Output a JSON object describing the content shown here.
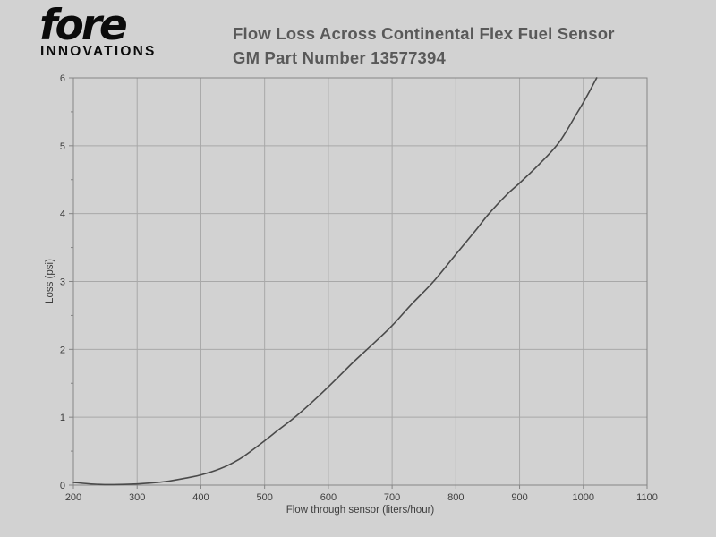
{
  "page": {
    "background_color": "#d2d2d2"
  },
  "logo": {
    "brand": "fore",
    "subtitle": "INNOVATIONS",
    "color": "#0b0b0b"
  },
  "header": {
    "title_line1": "Flow Loss Across Continental Flex Fuel Sensor",
    "title_line2": "GM Part Number 13577394",
    "color": "#595959"
  },
  "chart_data": {
    "type": "line",
    "title": "Flow Loss Across Continental Flex Fuel Sensor GM Part Number 13577394",
    "xlabel": "Flow through sensor (liters/hour)",
    "ylabel": "Loss (psi)",
    "xlim": [
      200,
      1100
    ],
    "ylim": [
      0,
      6
    ],
    "x_ticks": [
      200,
      300,
      400,
      500,
      600,
      700,
      800,
      900,
      1000,
      1100
    ],
    "y_ticks": [
      0,
      1,
      2,
      3,
      4,
      5,
      6
    ],
    "y_minor_tick_step": 0.5,
    "grid": true,
    "legend": false,
    "colors": {
      "grid": "#a8a8a8",
      "axis": "#858585",
      "tick_text": "#3d3d3d",
      "curve": "#4a4a4a",
      "background": "#d2d2d2"
    },
    "series": [
      {
        "name": "pressure-loss",
        "points": [
          [
            200,
            0.04
          ],
          [
            240,
            0.01
          ],
          [
            280,
            0.01
          ],
          [
            320,
            0.03
          ],
          [
            350,
            0.06
          ],
          [
            380,
            0.11
          ],
          [
            400,
            0.15
          ],
          [
            430,
            0.24
          ],
          [
            460,
            0.38
          ],
          [
            490,
            0.58
          ],
          [
            520,
            0.8
          ],
          [
            550,
            1.02
          ],
          [
            580,
            1.27
          ],
          [
            610,
            1.54
          ],
          [
            640,
            1.82
          ],
          [
            670,
            2.08
          ],
          [
            700,
            2.35
          ],
          [
            730,
            2.66
          ],
          [
            765,
            3.0
          ],
          [
            800,
            3.4
          ],
          [
            830,
            3.74
          ],
          [
            852,
            4.0
          ],
          [
            880,
            4.28
          ],
          [
            900,
            4.45
          ],
          [
            930,
            4.72
          ],
          [
            962,
            5.05
          ],
          [
            990,
            5.48
          ],
          [
            1005,
            5.72
          ],
          [
            1021,
            6.0
          ]
        ]
      }
    ]
  }
}
